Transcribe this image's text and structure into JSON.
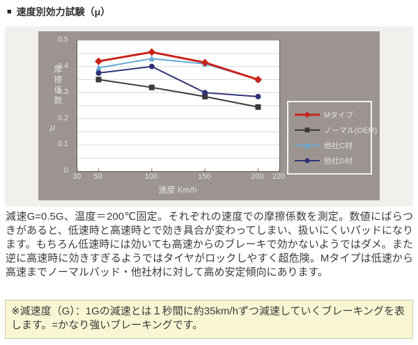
{
  "title": {
    "bullet": "■",
    "text": "速度別効力試験（μ）"
  },
  "chart_data": {
    "type": "line",
    "x": [
      50,
      100,
      150,
      200
    ],
    "xticks": [
      30,
      50,
      100,
      150,
      200,
      220
    ],
    "xlim": [
      30,
      220
    ],
    "ylim": [
      0,
      0.5
    ],
    "yticks": [
      0,
      0.1,
      0.2,
      0.3,
      0.4,
      0.5
    ],
    "grid_step": 0.05,
    "xlabel": "速度 Km/h",
    "ylabel": "摩擦係数",
    "ylabel_unit": "μ",
    "legend_position": "right-bottom",
    "grid": true,
    "draw_order": [
      1,
      2,
      3,
      0
    ],
    "series": [
      {
        "name": "Mタイプ",
        "color": "#c8231b",
        "marker": "diamond",
        "line_width": 3,
        "values": [
          0.42,
          0.455,
          0.415,
          0.35
        ]
      },
      {
        "name": "ノーマル(OEM)",
        "color": "#3a3a3a",
        "marker": "square",
        "line_width": 2,
        "values": [
          0.35,
          0.32,
          0.285,
          0.245
        ]
      },
      {
        "name": "他社C材",
        "color": "#64aad8",
        "marker": "triangle",
        "line_width": 2,
        "values": [
          0.395,
          0.43,
          0.41,
          0.35
        ]
      },
      {
        "name": "他社D材",
        "color": "#2e3376",
        "marker": "circle",
        "line_width": 2,
        "values": [
          0.375,
          0.4,
          0.3,
          0.285
        ]
      }
    ]
  },
  "description": "減速G=0.5G、温度＝200℃固定。それぞれの速度での摩擦係数を測定。数値にばらつきがあると、低速時と高速時とで効き具合が変わってしまい、扱いにくいパッドになります。もちろん低速時には効いても高速からのブレーキで効かないようではダメ。また逆に高速時に効きすぎるようではタイヤがロックしやすく超危険。Mタイプは低速から高速までノーマルパッド・他社材に対して高め安定傾向にあります。",
  "note": "※減速度（G）：1Gの減速とは１秒間に約35km/hずつ減速していくブレーキングを表します。=かなり強いブレーキングです。",
  "colors": {
    "panel": "#9b9490",
    "band": "#f1f0ed",
    "grid": "#d9d9d9",
    "tick_text": "#e3e1dc",
    "note_bg": "#f9f7d3",
    "note_border": "#c9c9a8",
    "accent_red": "#c8231b"
  }
}
